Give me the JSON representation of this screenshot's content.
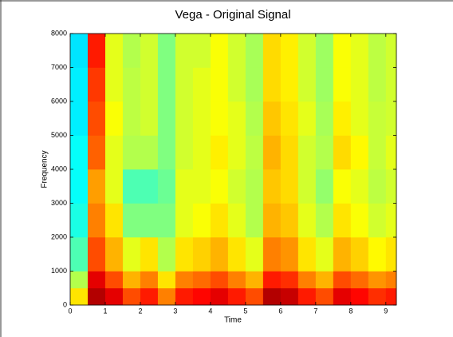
{
  "chart_data": {
    "type": "spectrogram",
    "title": "Vega - Original Signal",
    "x_label": "Time",
    "y_label": "Frequency",
    "colormap": "jet",
    "xlim": [
      0,
      9.3
    ],
    "xticks": [
      0,
      1,
      2,
      3,
      4,
      5,
      6,
      7,
      8,
      9
    ],
    "ylim": [
      0,
      8000
    ],
    "yticks": [
      0,
      1000,
      2000,
      3000,
      4000,
      5000,
      6000,
      7000,
      8000
    ],
    "xbins": [
      0,
      0.5,
      1,
      1.5,
      2,
      2.5,
      3,
      3.5,
      4,
      4.5,
      5,
      5.5,
      6,
      6.5,
      7,
      7.5,
      8,
      8.5,
      9,
      9.3
    ],
    "ybins": [
      0,
      500,
      1000,
      2000,
      3000,
      4000,
      5000,
      6000,
      7000,
      8000
    ],
    "z": [
      [
        0.65,
        0.95,
        0.9,
        0.8,
        0.85,
        0.75,
        0.85,
        0.87,
        0.9,
        0.85,
        0.8,
        0.95,
        0.93,
        0.85,
        0.8,
        0.9,
        0.87,
        0.83,
        0.85
      ],
      [
        0.55,
        0.9,
        0.8,
        0.7,
        0.75,
        0.65,
        0.75,
        0.77,
        0.8,
        0.75,
        0.7,
        0.85,
        0.83,
        0.75,
        0.7,
        0.8,
        0.77,
        0.73,
        0.75
      ],
      [
        0.45,
        0.8,
        0.7,
        0.6,
        0.65,
        0.55,
        0.65,
        0.67,
        0.7,
        0.65,
        0.6,
        0.75,
        0.73,
        0.65,
        0.6,
        0.7,
        0.67,
        0.63,
        0.65
      ],
      [
        0.4,
        0.75,
        0.65,
        0.5,
        0.5,
        0.5,
        0.6,
        0.62,
        0.65,
        0.6,
        0.55,
        0.7,
        0.68,
        0.6,
        0.55,
        0.65,
        0.62,
        0.58,
        0.6
      ],
      [
        0.38,
        0.72,
        0.6,
        0.45,
        0.45,
        0.48,
        0.6,
        0.6,
        0.62,
        0.58,
        0.55,
        0.68,
        0.66,
        0.58,
        0.52,
        0.62,
        0.6,
        0.56,
        0.58
      ],
      [
        0.38,
        0.78,
        0.6,
        0.55,
        0.55,
        0.5,
        0.58,
        0.6,
        0.64,
        0.6,
        0.56,
        0.7,
        0.66,
        0.58,
        0.55,
        0.66,
        0.63,
        0.57,
        0.6
      ],
      [
        0.36,
        0.8,
        0.62,
        0.56,
        0.58,
        0.5,
        0.58,
        0.6,
        0.62,
        0.6,
        0.55,
        0.68,
        0.65,
        0.6,
        0.54,
        0.64,
        0.6,
        0.57,
        0.58
      ],
      [
        0.36,
        0.82,
        0.6,
        0.56,
        0.58,
        0.5,
        0.58,
        0.6,
        0.62,
        0.58,
        0.54,
        0.66,
        0.64,
        0.58,
        0.53,
        0.62,
        0.6,
        0.56,
        0.58
      ],
      [
        0.35,
        0.85,
        0.6,
        0.55,
        0.58,
        0.5,
        0.58,
        0.58,
        0.62,
        0.58,
        0.54,
        0.66,
        0.64,
        0.58,
        0.53,
        0.62,
        0.6,
        0.56,
        0.58
      ]
    ]
  }
}
